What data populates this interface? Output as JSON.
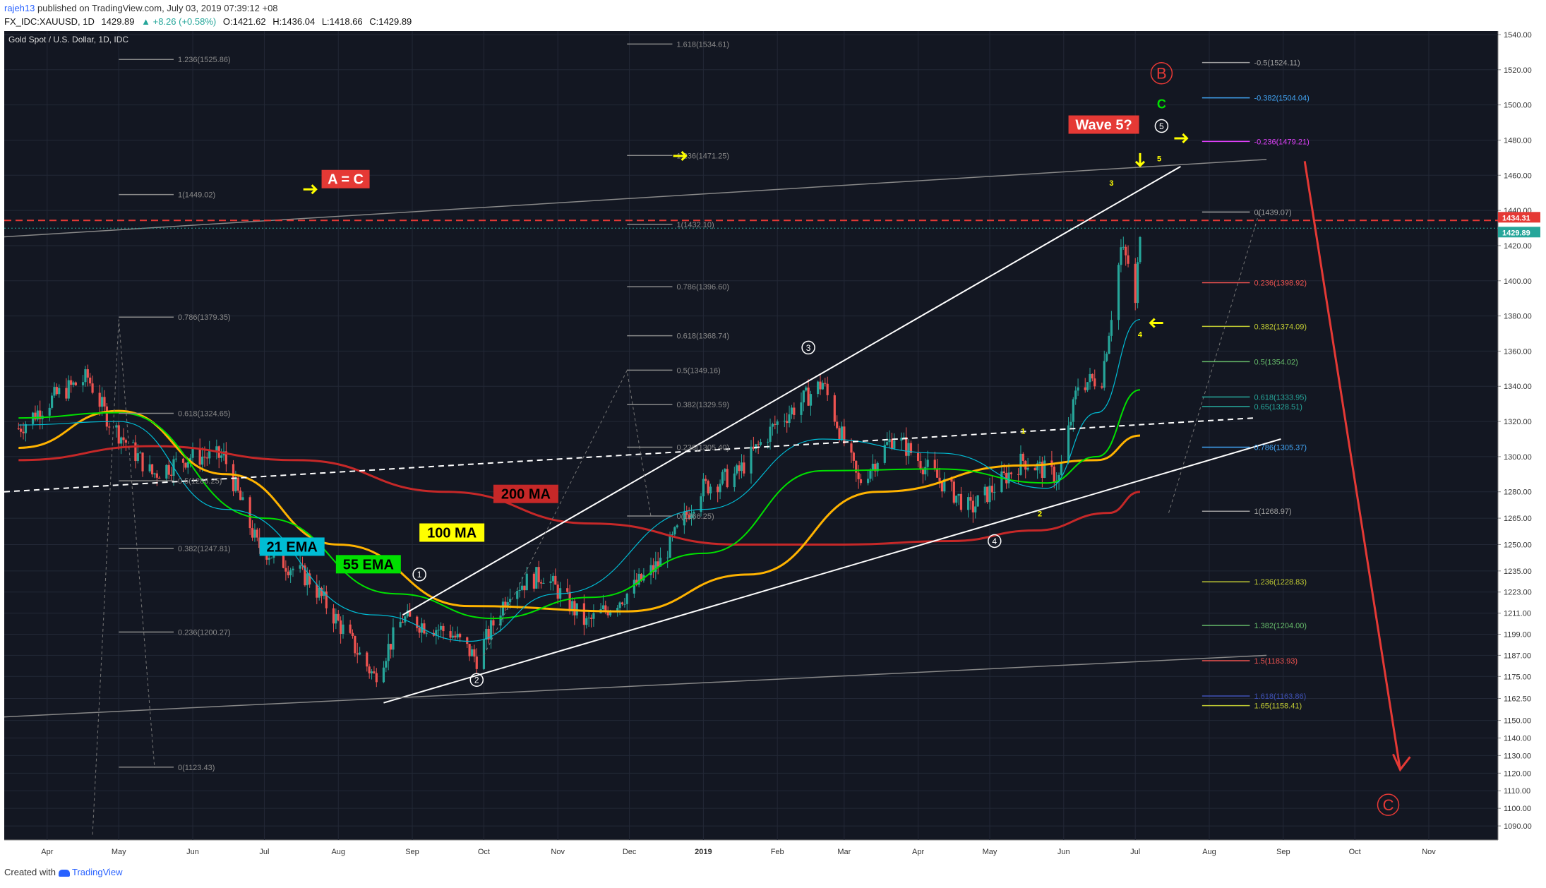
{
  "header": {
    "user": "rajeh13",
    "published": "published on TradingView.com, July 03, 2019 07:39:12 +08",
    "symbol": "FX_IDC:XAUUSD, 1D",
    "last": "1429.89",
    "change": "▲ +8.26 (+0.58%)",
    "open": "O:1421.62",
    "high": "H:1436.04",
    "low": "L:1418.66",
    "close": "C:1429.89"
  },
  "footer": {
    "created_with": "Created with",
    "brand": "TradingView"
  },
  "colors": {
    "background": "#131722",
    "up": "#26a69a",
    "down": "#ef5350",
    "ema21": "#00bcd4",
    "ema55": "#00e000",
    "ma100": "#ffb300",
    "ma200": "#c62828",
    "annotation_red": "#e53935",
    "annotation_yellow": "#ffff00"
  },
  "chart_data": {
    "type": "candlestick",
    "title": "Gold Spot / U.S. Dollar, 1D, IDC",
    "x_ticks": [
      "Apr",
      "May",
      "Jun",
      "Jul",
      "Aug",
      "Sep",
      "Oct",
      "Nov",
      "Dec",
      "2019",
      "Feb",
      "Mar",
      "Apr",
      "May",
      "Jun",
      "Jul",
      "Aug",
      "Sep",
      "Oct",
      "Nov"
    ],
    "y_ticks": [
      1090,
      1100,
      1110,
      1120,
      1130,
      1140,
      1150,
      1162.5,
      1175,
      1187,
      1199,
      1211,
      1223,
      1235,
      1250,
      1265,
      1280,
      1300,
      1320,
      1340,
      1360,
      1380,
      1400,
      1420,
      1440,
      1460,
      1480,
      1500,
      1520,
      1540
    ],
    "ylim": [
      1082,
      1542
    ],
    "price_tags": [
      {
        "label": "1434.31",
        "value": 1434.31,
        "color": "#e53935"
      },
      {
        "label": "1429.89",
        "value": 1429.89,
        "color": "#26a69a"
      }
    ],
    "close_path": [
      [
        "2018-03-20",
        1316
      ],
      [
        "2018-04-05",
        1335
      ],
      [
        "2018-04-18",
        1345
      ],
      [
        "2018-04-27",
        1320
      ],
      [
        "2018-05-15",
        1290
      ],
      [
        "2018-05-31",
        1300
      ],
      [
        "2018-06-14",
        1300
      ],
      [
        "2018-06-28",
        1250
      ],
      [
        "2018-07-20",
        1230
      ],
      [
        "2018-08-16",
        1175
      ],
      [
        "2018-08-28",
        1208
      ],
      [
        "2018-09-17",
        1200
      ],
      [
        "2018-09-28",
        1185
      ],
      [
        "2018-10-12",
        1225
      ],
      [
        "2018-10-26",
        1233
      ],
      [
        "2018-11-13",
        1205
      ],
      [
        "2018-11-30",
        1222
      ],
      [
        "2018-12-14",
        1240
      ],
      [
        "2018-12-31",
        1282
      ],
      [
        "2019-01-15",
        1290
      ],
      [
        "2019-01-31",
        1318
      ],
      [
        "2019-02-20",
        1342
      ],
      [
        "2019-03-07",
        1285
      ],
      [
        "2019-03-22",
        1312
      ],
      [
        "2019-04-05",
        1293
      ],
      [
        "2019-04-23",
        1270
      ],
      [
        "2019-05-15",
        1298
      ],
      [
        "2019-05-30",
        1288
      ],
      [
        "2019-06-07",
        1341
      ],
      [
        "2019-06-17",
        1345
      ],
      [
        "2019-06-25",
        1418
      ],
      [
        "2019-06-28",
        1410
      ],
      [
        "2019-07-01",
        1385
      ],
      [
        "2019-07-03",
        1429.89
      ]
    ],
    "ema21_path": [
      [
        "2018-03-20",
        1318
      ],
      [
        "2018-05-01",
        1320
      ],
      [
        "2018-06-15",
        1270
      ],
      [
        "2018-08-16",
        1210
      ],
      [
        "2018-09-25",
        1195
      ],
      [
        "2018-11-01",
        1222
      ],
      [
        "2019-01-01",
        1270
      ],
      [
        "2019-02-20",
        1310
      ],
      [
        "2019-04-10",
        1302
      ],
      [
        "2019-05-25",
        1282
      ],
      [
        "2019-06-15",
        1325
      ],
      [
        "2019-07-03",
        1378
      ]
    ],
    "ema55_path": [
      [
        "2018-03-20",
        1322
      ],
      [
        "2018-05-01",
        1325
      ],
      [
        "2018-07-01",
        1265
      ],
      [
        "2018-08-25",
        1222
      ],
      [
        "2018-10-05",
        1208
      ],
      [
        "2018-11-15",
        1220
      ],
      [
        "2019-01-01",
        1245
      ],
      [
        "2019-02-20",
        1292
      ],
      [
        "2019-04-10",
        1293
      ],
      [
        "2019-05-25",
        1285
      ],
      [
        "2019-06-15",
        1300
      ],
      [
        "2019-07-03",
        1338
      ]
    ],
    "ma100_path": [
      [
        "2018-03-20",
        1305
      ],
      [
        "2018-05-01",
        1326
      ],
      [
        "2018-06-15",
        1290
      ],
      [
        "2018-08-01",
        1250
      ],
      [
        "2018-09-25",
        1215
      ],
      [
        "2018-11-30",
        1212
      ],
      [
        "2019-01-20",
        1233
      ],
      [
        "2019-03-15",
        1280
      ],
      [
        "2019-05-15",
        1295
      ],
      [
        "2019-06-15",
        1298
      ],
      [
        "2019-07-03",
        1312
      ]
    ],
    "ma200_path": [
      [
        "2018-03-20",
        1298
      ],
      [
        "2018-05-15",
        1306
      ],
      [
        "2018-07-15",
        1298
      ],
      [
        "2018-09-15",
        1280
      ],
      [
        "2018-11-15",
        1262
      ],
      [
        "2019-01-15",
        1250
      ],
      [
        "2019-03-01",
        1250
      ],
      [
        "2019-04-15",
        1252
      ],
      [
        "2019-05-20",
        1258
      ],
      [
        "2019-06-20",
        1268
      ],
      [
        "2019-07-03",
        1280
      ]
    ],
    "fib_left": [
      {
        "label": "1.236(1525.86)",
        "value": 1525.86
      },
      {
        "label": "1(1449.02)",
        "value": 1449.02
      },
      {
        "label": "0.786(1379.35)",
        "value": 1379.35
      },
      {
        "label": "0.618(1324.65)",
        "value": 1324.65
      },
      {
        "label": "0.5(1286.25)",
        "value": 1286.25
      },
      {
        "label": "0.382(1247.81)",
        "value": 1247.81
      },
      {
        "label": "0.236(1200.27)",
        "value": 1200.27
      },
      {
        "label": "0(1123.43)",
        "value": 1123.43
      }
    ],
    "fib_mid": [
      {
        "label": "1.618(1534.61)",
        "value": 1534.61
      },
      {
        "label": "1.236(1471.25)",
        "value": 1471.25
      },
      {
        "label": "1(1432.10)",
        "value": 1432.1
      },
      {
        "label": "0.786(1396.60)",
        "value": 1396.6
      },
      {
        "label": "0.618(1368.74)",
        "value": 1368.74
      },
      {
        "label": "0.5(1349.16)",
        "value": 1349.16
      },
      {
        "label": "0.382(1329.59)",
        "value": 1329.59
      },
      {
        "label": "0.236(1305.40)",
        "value": 1305.4
      },
      {
        "label": "0(1266.25)",
        "value": 1266.25
      }
    ],
    "fib_right": [
      {
        "label": "-0.5(1524.11)",
        "value": 1524.11,
        "color": "#9e9e9e"
      },
      {
        "label": "-0.382(1504.04)",
        "value": 1504.04,
        "color": "#42a5f5"
      },
      {
        "label": "-0.236(1479.21)",
        "value": 1479.21,
        "color": "#e040fb"
      },
      {
        "label": "0(1439.07)",
        "value": 1439.07,
        "color": "#9e9e9e"
      },
      {
        "label": "0.236(1398.92)",
        "value": 1398.92,
        "color": "#ef5350"
      },
      {
        "label": "0.382(1374.09)",
        "value": 1374.09,
        "color": "#c0ca33"
      },
      {
        "label": "0.5(1354.02)",
        "value": 1354.02,
        "color": "#66bb6a"
      },
      {
        "label": "0.618(1333.95)",
        "value": 1333.95,
        "color": "#26a69a"
      },
      {
        "label": "0.65(1328.51)",
        "value": 1328.51,
        "color": "#26a69a"
      },
      {
        "label": "0.786(1305.37)",
        "value": 1305.37,
        "color": "#42a5f5"
      },
      {
        "label": "1(1268.97)",
        "value": 1268.97,
        "color": "#9e9e9e"
      },
      {
        "label": "1.236(1228.83)",
        "value": 1228.83,
        "color": "#c0ca33"
      },
      {
        "label": "1.382(1204.00)",
        "value": 1204.0,
        "color": "#66bb6a"
      },
      {
        "label": "1.5(1183.93)",
        "value": 1183.93,
        "color": "#ef5350"
      },
      {
        "label": "1.618(1163.86)",
        "value": 1163.86,
        "color": "#3f51b5"
      },
      {
        "label": "1.65(1158.41)",
        "value": 1158.41,
        "color": "#c0ca33"
      }
    ],
    "labels": {
      "ema21": "21 EMA",
      "ema55": "55 EMA",
      "ma100": "100 MA",
      "ma200": "200 MA",
      "a_equals_c": "A = C",
      "wave5": "Wave 5?",
      "B": "B",
      "C_green": "C",
      "C_red": "C",
      "circ1": "1",
      "circ2": "2",
      "circ3": "3",
      "circ4": "4",
      "circ5": "5",
      "y1": "1",
      "y2": "2",
      "y3": "3",
      "y4": "4",
      "y5": "5"
    }
  }
}
